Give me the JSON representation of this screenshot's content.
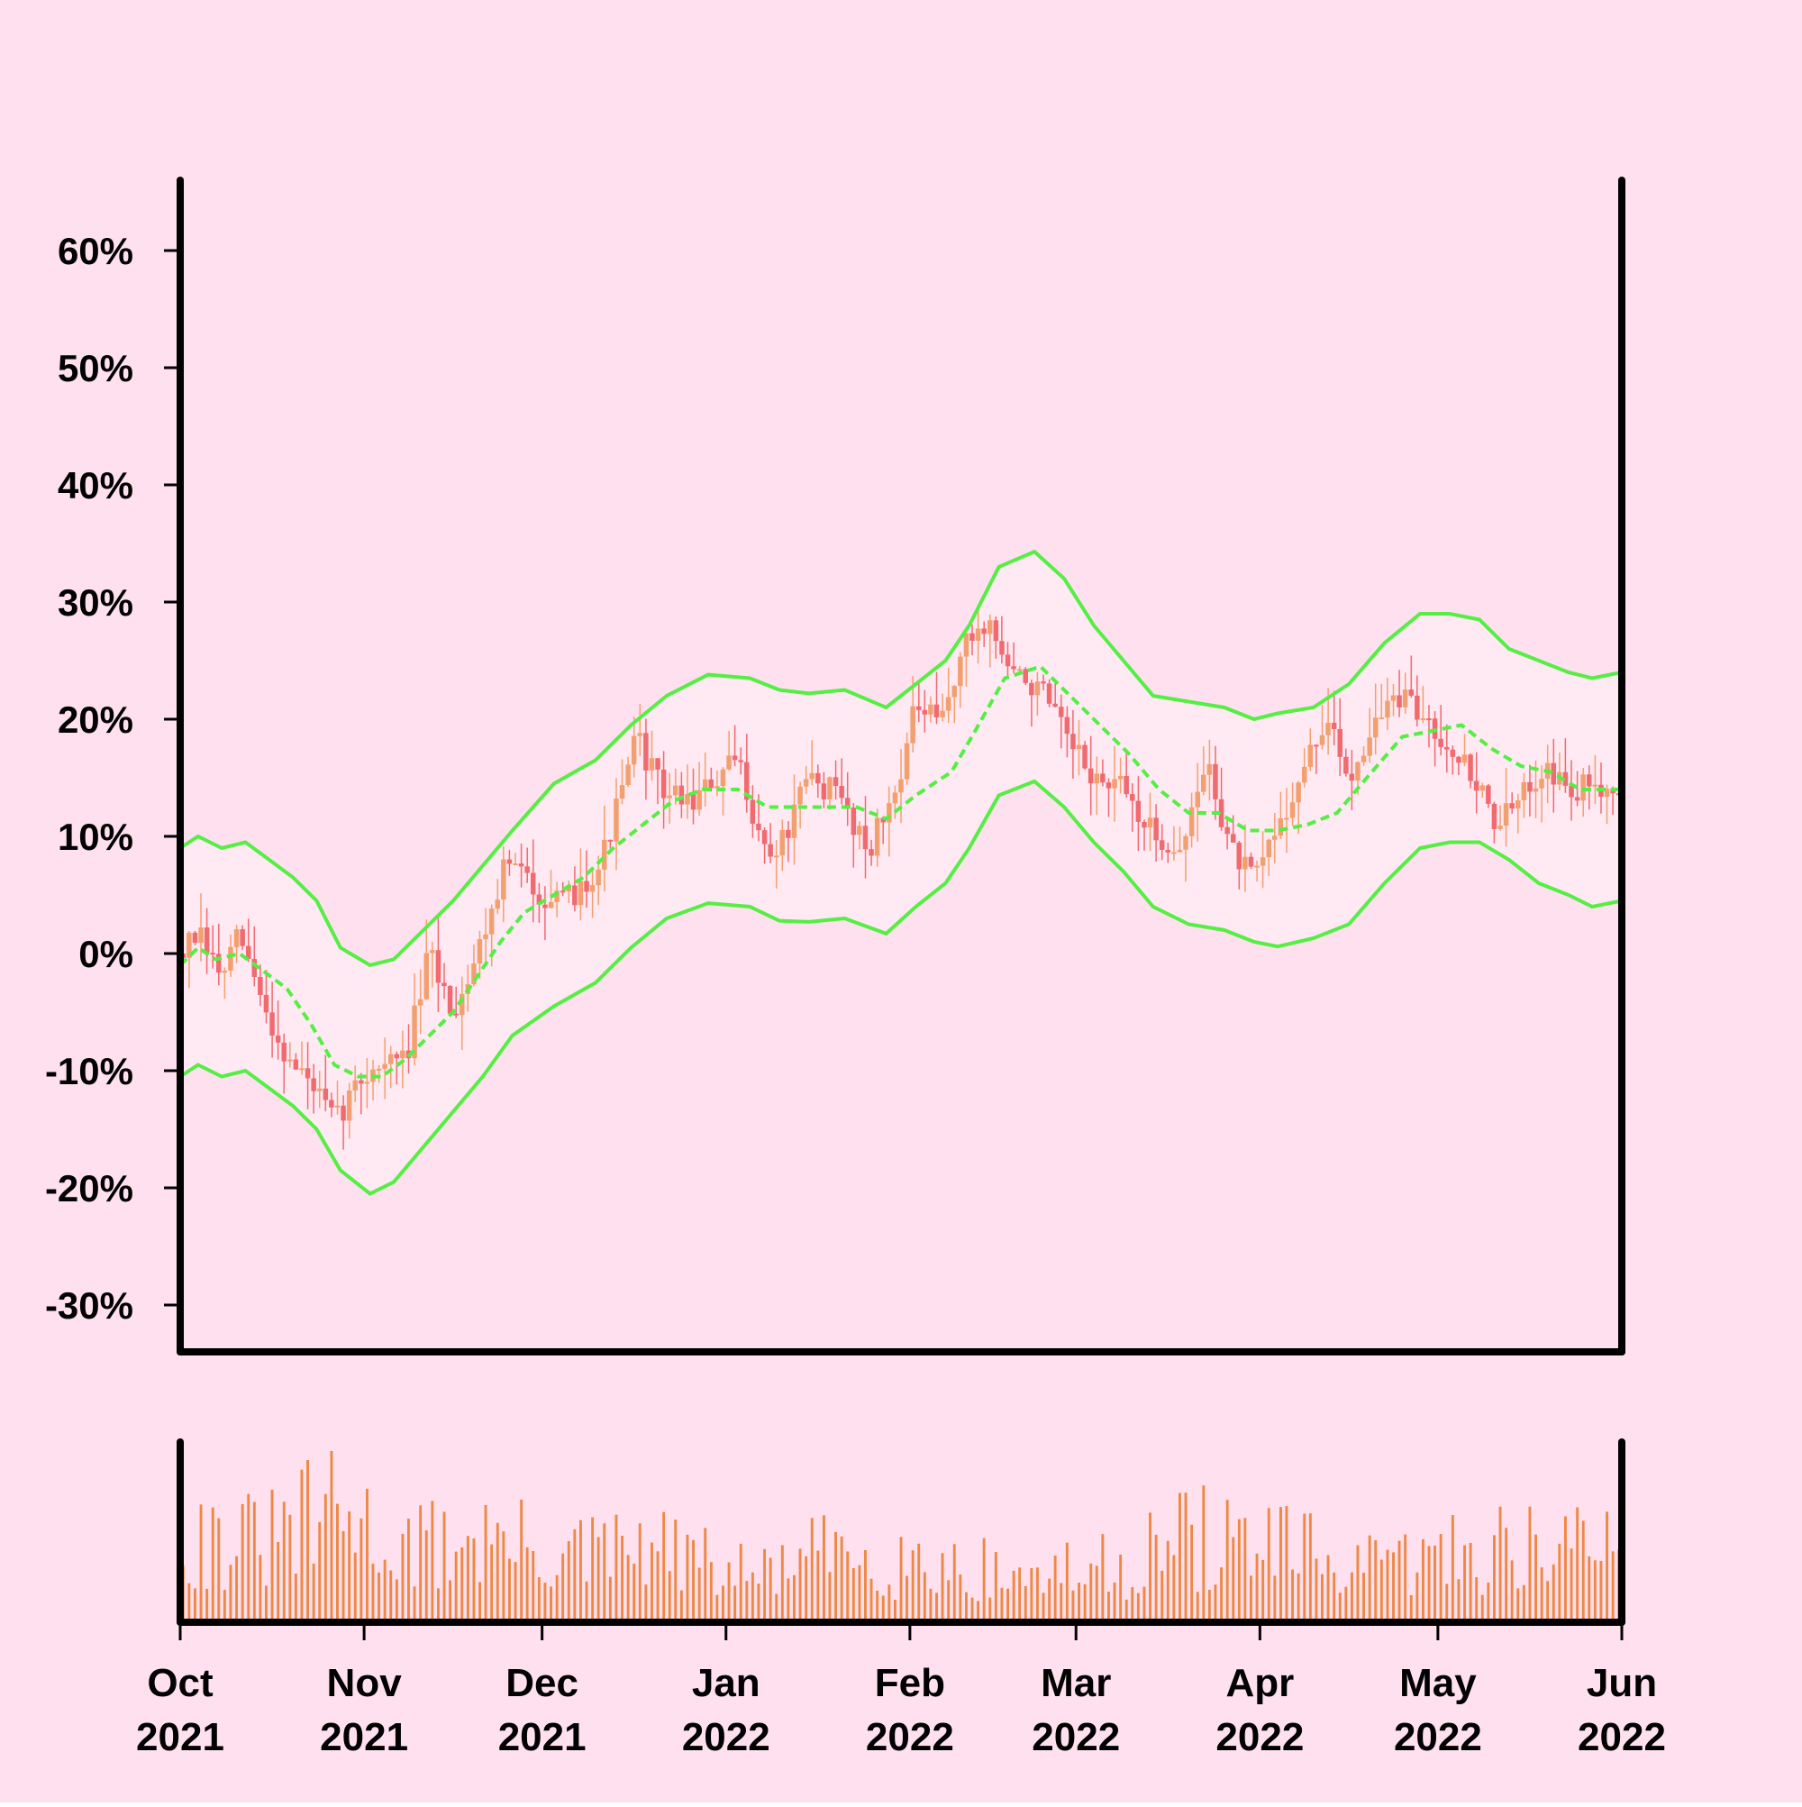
{
  "colors": {
    "background": "#ffe0ee",
    "axis": "#000000",
    "band": "#55ee44",
    "candle_up": "#f2a070",
    "candle_down": "#f06a70",
    "volume": "#ee8844",
    "band_fill": "#ffe9f2"
  },
  "chart_data": {
    "type": "candlestick",
    "title": "",
    "xlabel": "",
    "ylabel": "",
    "ylim": [
      -34,
      66
    ],
    "y_ticks": [
      -30,
      -20,
      -10,
      0,
      10,
      20,
      30,
      40,
      50,
      60
    ],
    "y_tick_labels": [
      "-30%",
      "-20%",
      "-10%",
      "0%",
      "10%",
      "20%",
      "30%",
      "40%",
      "50%",
      "60%"
    ],
    "x_range": [
      "2021-10-01",
      "2022-06-01"
    ],
    "x_ticks": [
      {
        "date": "2021-10-01",
        "month": "Oct",
        "year": "2021"
      },
      {
        "date": "2021-11-01",
        "month": "Nov",
        "year": "2021"
      },
      {
        "date": "2021-12-01",
        "month": "Dec",
        "year": "2021"
      },
      {
        "date": "2022-01-01",
        "month": "Jan",
        "year": "2022"
      },
      {
        "date": "2022-02-01",
        "month": "Feb",
        "year": "2022"
      },
      {
        "date": "2022-03-01",
        "month": "Mar",
        "year": "2022"
      },
      {
        "date": "2022-04-01",
        "month": "Apr",
        "year": "2022"
      },
      {
        "date": "2022-05-01",
        "month": "May",
        "year": "2022"
      },
      {
        "date": "2022-06-01",
        "month": "Jun",
        "year": "2022"
      }
    ],
    "price_trend": [
      [
        "2021-10-01",
        0.0
      ],
      [
        "2021-10-04",
        1.5
      ],
      [
        "2021-10-08",
        -2.0
      ],
      [
        "2021-10-11",
        1.5
      ],
      [
        "2021-10-15",
        -4.5
      ],
      [
        "2021-10-19",
        -9.0
      ],
      [
        "2021-10-23",
        -11.0
      ],
      [
        "2021-10-27",
        -14.5
      ],
      [
        "2021-10-31",
        -11.0
      ],
      [
        "2021-11-03",
        -9.5
      ],
      [
        "2021-11-08",
        -9.0
      ],
      [
        "2021-11-12",
        0.0
      ],
      [
        "2021-11-16",
        -5.0
      ],
      [
        "2021-11-20",
        0.0
      ],
      [
        "2021-11-25",
        8.0
      ],
      [
        "2021-11-30",
        5.5
      ],
      [
        "2021-12-04",
        4.0
      ],
      [
        "2021-12-08",
        6.0
      ],
      [
        "2021-12-11",
        8.0
      ],
      [
        "2021-12-14",
        13.0
      ],
      [
        "2021-12-17",
        18.5
      ],
      [
        "2021-12-21",
        14.0
      ],
      [
        "2021-12-26",
        13.0
      ],
      [
        "2021-12-30",
        14.5
      ],
      [
        "2022-01-03",
        16.5
      ],
      [
        "2022-01-08",
        8.0
      ],
      [
        "2022-01-11",
        10.0
      ],
      [
        "2022-01-15",
        15.0
      ],
      [
        "2022-01-20",
        13.5
      ],
      [
        "2022-01-25",
        9.0
      ],
      [
        "2022-01-29",
        13.0
      ],
      [
        "2022-02-02",
        21.0
      ],
      [
        "2022-02-06",
        19.5
      ],
      [
        "2022-02-10",
        26.0
      ],
      [
        "2022-02-14",
        28.5
      ],
      [
        "2022-02-18",
        24.0
      ],
      [
        "2022-02-23",
        22.5
      ],
      [
        "2022-02-28",
        17.5
      ],
      [
        "2022-03-05",
        14.5
      ],
      [
        "2022-03-09",
        14.0
      ],
      [
        "2022-03-14",
        10.0
      ],
      [
        "2022-03-19",
        9.0
      ],
      [
        "2022-03-23",
        16.5
      ],
      [
        "2022-03-27",
        9.0
      ],
      [
        "2022-03-31",
        6.0
      ],
      [
        "2022-04-04",
        11.0
      ],
      [
        "2022-04-08",
        15.0
      ],
      [
        "2022-04-12",
        20.0
      ],
      [
        "2022-04-16",
        15.0
      ],
      [
        "2022-04-20",
        19.5
      ],
      [
        "2022-04-24",
        22.0
      ],
      [
        "2022-04-29",
        20.0
      ],
      [
        "2022-05-03",
        18.0
      ],
      [
        "2022-05-07",
        15.0
      ],
      [
        "2022-05-11",
        11.0
      ],
      [
        "2022-05-15",
        13.0
      ],
      [
        "2022-05-19",
        16.5
      ],
      [
        "2022-05-23",
        13.5
      ],
      [
        "2022-05-27",
        14.5
      ],
      [
        "2022-06-01",
        14.5
      ]
    ],
    "moving_average": [
      [
        "2021-10-01",
        -1.0
      ],
      [
        "2021-10-04",
        0.5
      ],
      [
        "2021-10-07",
        -0.5
      ],
      [
        "2021-10-11",
        0.0
      ],
      [
        "2021-10-15",
        -1.5
      ],
      [
        "2021-10-19",
        -3.0
      ],
      [
        "2021-10-23",
        -6.0
      ],
      [
        "2021-10-27",
        -9.5
      ],
      [
        "2021-10-31",
        -10.5
      ],
      [
        "2021-11-04",
        -10.5
      ],
      [
        "2021-11-08",
        -9.0
      ],
      [
        "2021-11-12",
        -7.0
      ],
      [
        "2021-11-16",
        -5.0
      ],
      [
        "2021-11-20",
        -2.0
      ],
      [
        "2021-11-24",
        1.0
      ],
      [
        "2021-11-28",
        3.5
      ],
      [
        "2021-12-03",
        5.0
      ],
      [
        "2021-12-08",
        6.5
      ],
      [
        "2021-12-13",
        9.0
      ],
      [
        "2021-12-18",
        11.0
      ],
      [
        "2021-12-23",
        13.0
      ],
      [
        "2021-12-28",
        14.0
      ],
      [
        "2022-01-03",
        14.0
      ],
      [
        "2022-01-08",
        12.5
      ],
      [
        "2022-01-13",
        12.5
      ],
      [
        "2022-01-18",
        12.5
      ],
      [
        "2022-01-23",
        12.5
      ],
      [
        "2022-01-28",
        11.5
      ],
      [
        "2022-02-02",
        13.5
      ],
      [
        "2022-02-08",
        15.5
      ],
      [
        "2022-02-12",
        19.0
      ],
      [
        "2022-02-17",
        23.5
      ],
      [
        "2022-02-23",
        24.5
      ],
      [
        "2022-02-28",
        22.0
      ],
      [
        "2022-03-05",
        19.5
      ],
      [
        "2022-03-10",
        17.0
      ],
      [
        "2022-03-15",
        14.0
      ],
      [
        "2022-03-20",
        12.0
      ],
      [
        "2022-03-25",
        12.0
      ],
      [
        "2022-03-30",
        10.5
      ],
      [
        "2022-04-04",
        10.5
      ],
      [
        "2022-04-09",
        11.0
      ],
      [
        "2022-04-14",
        12.0
      ],
      [
        "2022-04-19",
        15.0
      ],
      [
        "2022-04-25",
        18.5
      ],
      [
        "2022-04-30",
        19.0
      ],
      [
        "2022-05-05",
        19.5
      ],
      [
        "2022-05-10",
        17.5
      ],
      [
        "2022-05-15",
        16.0
      ],
      [
        "2022-05-20",
        15.5
      ],
      [
        "2022-05-25",
        14.0
      ],
      [
        "2022-06-01",
        14.0
      ]
    ],
    "upper_band": [
      [
        "2021-10-01",
        9.0
      ],
      [
        "2021-10-04",
        10.0
      ],
      [
        "2021-10-08",
        9.0
      ],
      [
        "2021-10-12",
        9.5
      ],
      [
        "2021-10-16",
        8.0
      ],
      [
        "2021-10-20",
        6.5
      ],
      [
        "2021-10-24",
        4.5
      ],
      [
        "2021-10-28",
        0.5
      ],
      [
        "2021-11-02",
        -1.0
      ],
      [
        "2021-11-06",
        -0.5
      ],
      [
        "2021-11-11",
        2.0
      ],
      [
        "2021-11-16",
        4.5
      ],
      [
        "2021-11-21",
        7.5
      ],
      [
        "2021-11-26",
        10.5
      ],
      [
        "2021-12-03",
        14.5
      ],
      [
        "2021-12-10",
        16.5
      ],
      [
        "2021-12-16",
        19.5
      ],
      [
        "2021-12-22",
        22.0
      ],
      [
        "2021-12-29",
        23.8
      ],
      [
        "2022-01-05",
        23.5
      ],
      [
        "2022-01-10",
        22.5
      ],
      [
        "2022-01-15",
        22.2
      ],
      [
        "2022-01-21",
        22.5
      ],
      [
        "2022-01-28",
        21.0
      ],
      [
        "2022-02-02",
        23.0
      ],
      [
        "2022-02-07",
        25.0
      ],
      [
        "2022-02-11",
        28.0
      ],
      [
        "2022-02-16",
        33.0
      ],
      [
        "2022-02-22",
        34.3
      ],
      [
        "2022-02-27",
        32.0
      ],
      [
        "2022-03-04",
        28.0
      ],
      [
        "2022-03-09",
        25.0
      ],
      [
        "2022-03-14",
        22.0
      ],
      [
        "2022-03-20",
        21.5
      ],
      [
        "2022-03-26",
        21.0
      ],
      [
        "2022-03-31",
        20.0
      ],
      [
        "2022-04-04",
        20.5
      ],
      [
        "2022-04-10",
        21.0
      ],
      [
        "2022-04-16",
        23.0
      ],
      [
        "2022-04-22",
        26.5
      ],
      [
        "2022-04-28",
        29.0
      ],
      [
        "2022-05-03",
        29.0
      ],
      [
        "2022-05-08",
        28.5
      ],
      [
        "2022-05-13",
        26.0
      ],
      [
        "2022-05-18",
        25.0
      ],
      [
        "2022-05-23",
        24.0
      ],
      [
        "2022-05-27",
        23.5
      ],
      [
        "2022-06-01",
        24.0
      ]
    ],
    "lower_band": [
      [
        "2021-10-01",
        -10.5
      ],
      [
        "2021-10-04",
        -9.5
      ],
      [
        "2021-10-08",
        -10.5
      ],
      [
        "2021-10-12",
        -10.0
      ],
      [
        "2021-10-16",
        -11.5
      ],
      [
        "2021-10-20",
        -13.0
      ],
      [
        "2021-10-24",
        -15.0
      ],
      [
        "2021-10-28",
        -18.5
      ],
      [
        "2021-11-02",
        -20.5
      ],
      [
        "2021-11-06",
        -19.5
      ],
      [
        "2021-11-11",
        -16.5
      ],
      [
        "2021-11-16",
        -13.5
      ],
      [
        "2021-11-21",
        -10.5
      ],
      [
        "2021-11-26",
        -7.0
      ],
      [
        "2021-12-03",
        -4.5
      ],
      [
        "2021-12-10",
        -2.5
      ],
      [
        "2021-12-16",
        0.5
      ],
      [
        "2021-12-22",
        3.0
      ],
      [
        "2021-12-29",
        4.3
      ],
      [
        "2022-01-05",
        4.0
      ],
      [
        "2022-01-10",
        2.8
      ],
      [
        "2022-01-15",
        2.7
      ],
      [
        "2022-01-21",
        3.0
      ],
      [
        "2022-01-28",
        1.7
      ],
      [
        "2022-02-02",
        4.0
      ],
      [
        "2022-02-07",
        6.0
      ],
      [
        "2022-02-11",
        9.0
      ],
      [
        "2022-02-16",
        13.5
      ],
      [
        "2022-02-22",
        14.7
      ],
      [
        "2022-02-27",
        12.5
      ],
      [
        "2022-03-04",
        9.5
      ],
      [
        "2022-03-09",
        7.0
      ],
      [
        "2022-03-14",
        4.0
      ],
      [
        "2022-03-20",
        2.5
      ],
      [
        "2022-03-26",
        2.0
      ],
      [
        "2022-03-31",
        1.0
      ],
      [
        "2022-04-04",
        0.6
      ],
      [
        "2022-04-10",
        1.3
      ],
      [
        "2022-04-16",
        2.5
      ],
      [
        "2022-04-22",
        6.0
      ],
      [
        "2022-04-28",
        9.0
      ],
      [
        "2022-05-03",
        9.5
      ],
      [
        "2022-05-08",
        9.5
      ],
      [
        "2022-05-13",
        8.0
      ],
      [
        "2022-05-18",
        6.0
      ],
      [
        "2022-05-23",
        5.0
      ],
      [
        "2022-05-27",
        4.0
      ],
      [
        "2022-06-01",
        4.5
      ]
    ],
    "volume_envelope": [
      [
        "2021-10-01",
        0.65
      ],
      [
        "2021-10-15",
        0.6
      ],
      [
        "2021-10-27",
        0.85
      ],
      [
        "2021-11-08",
        0.55
      ],
      [
        "2021-11-20",
        0.65
      ],
      [
        "2021-12-05",
        0.5
      ],
      [
        "2021-12-20",
        0.55
      ],
      [
        "2022-01-05",
        0.35
      ],
      [
        "2022-01-20",
        0.55
      ],
      [
        "2022-02-05",
        0.45
      ],
      [
        "2022-02-20",
        0.35
      ],
      [
        "2022-03-05",
        0.4
      ],
      [
        "2022-03-20",
        0.65
      ],
      [
        "2022-04-05",
        0.55
      ],
      [
        "2022-04-20",
        0.4
      ],
      [
        "2022-05-05",
        0.55
      ],
      [
        "2022-05-20",
        0.6
      ],
      [
        "2022-06-01",
        0.55
      ]
    ]
  }
}
